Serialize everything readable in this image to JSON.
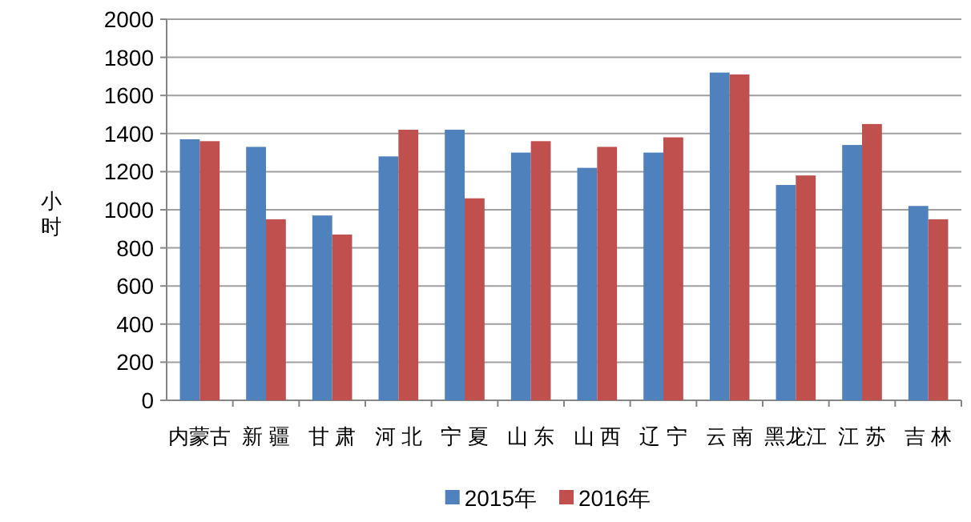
{
  "chart_data": {
    "type": "bar",
    "ylabel": "小时",
    "categories": [
      "内蒙古",
      "新 疆",
      "甘 肃",
      "河 北",
      "宁 夏",
      "山 东",
      "山 西",
      "辽 宁",
      "云 南",
      "黑龙江",
      "江 苏",
      "吉 林"
    ],
    "series": [
      {
        "name": "2015年",
        "color": "#4f81bd",
        "values": [
          1370,
          1330,
          970,
          1280,
          1420,
          1300,
          1220,
          1300,
          1720,
          1130,
          1340,
          1020
        ]
      },
      {
        "name": "2016年",
        "color": "#c0504d",
        "values": [
          1360,
          950,
          870,
          1420,
          1060,
          1360,
          1330,
          1380,
          1710,
          1180,
          1450,
          950
        ]
      }
    ],
    "ylim": [
      0,
      2000
    ],
    "yticks": [
      0,
      200,
      400,
      600,
      800,
      1000,
      1200,
      1400,
      1600,
      1800,
      2000
    ],
    "grid": "y",
    "legend": "bottom"
  }
}
